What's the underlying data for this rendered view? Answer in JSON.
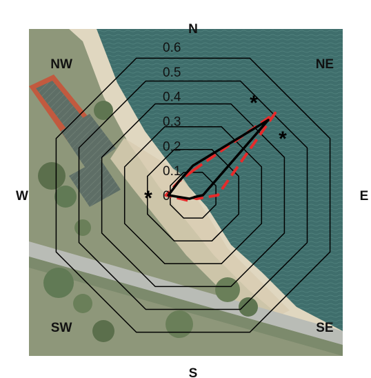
{
  "chart_data": {
    "type": "radar",
    "directions": [
      "N",
      "NE",
      "E",
      "SE",
      "S",
      "SW",
      "W",
      "NW"
    ],
    "radial_ticks": [
      "0",
      "0.1",
      "0.2",
      "0.3",
      "0.4",
      "0.5",
      "0.6"
    ],
    "rlim": [
      0,
      0.6
    ],
    "grid": true,
    "grid_shape": "octagon",
    "background": "aerial photograph of shoreline with tennis courts and road",
    "series": [
      {
        "style": "solid",
        "color": "#000000",
        "values": {
          "N": 0.12,
          "NE": 0.43,
          "E": 0.04,
          "SE": 0.01,
          "S": 0.01,
          "SW": 0.02,
          "W": 0.1,
          "NW": 0.08
        }
      },
      {
        "style": "dashed",
        "color": "#e62b2b",
        "values": {
          "N": 0.1,
          "NE": 0.47,
          "E": 0.1,
          "SE": 0.02,
          "S": 0.01,
          "SW": 0.03,
          "W": 0.11,
          "NW": 0.08
        }
      }
    ],
    "significance_markers": [
      {
        "symbol": "*",
        "direction": "NNE"
      },
      {
        "symbol": "*",
        "direction": "ENE"
      },
      {
        "symbol": "*",
        "direction": "W"
      }
    ]
  }
}
